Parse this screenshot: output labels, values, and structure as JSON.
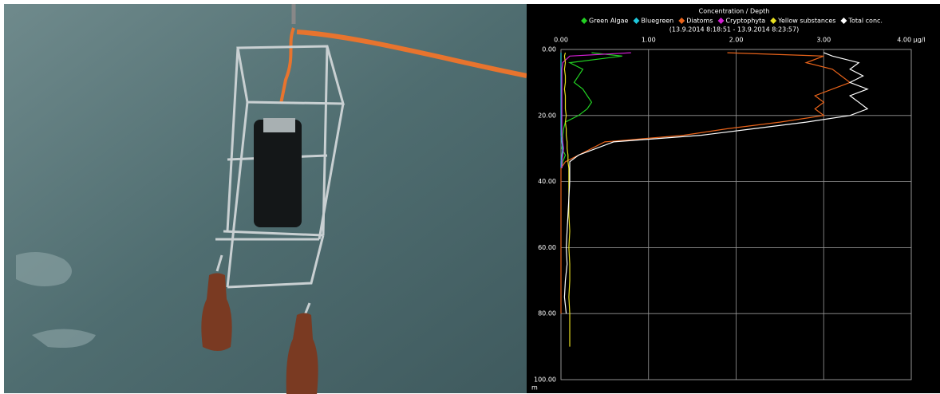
{
  "chart_data": {
    "type": "line",
    "title": "Concentration / Depth",
    "subtitle": "(13.9.2014 8:18:51 - 13.9.2014 8:23:57)",
    "ylabel": "m",
    "y": [
      1,
      2,
      4,
      6,
      8,
      10,
      12,
      14,
      16,
      18,
      20,
      22,
      24,
      26,
      28,
      30,
      32,
      34,
      36,
      40,
      45,
      50,
      55,
      60,
      65,
      70,
      75,
      80,
      85,
      90
    ],
    "xlim": [
      0,
      4
    ],
    "ylim": [
      0,
      100
    ],
    "y_inverted": true,
    "x_axis_position": "top",
    "grid": true,
    "legend": "top",
    "xticks": [
      {
        "value": 0,
        "label": "0.00"
      },
      {
        "value": 1,
        "label": "1.00"
      },
      {
        "value": 2,
        "label": "2.00"
      },
      {
        "value": 3,
        "label": "3.00"
      },
      {
        "value": 4,
        "label": "4.00 µg/l"
      }
    ],
    "yticks": [
      {
        "value": 0,
        "label": "0.00"
      },
      {
        "value": 20,
        "label": "20.00"
      },
      {
        "value": 40,
        "label": "40.00"
      },
      {
        "value": 60,
        "label": "60.00"
      },
      {
        "value": 80,
        "label": "80.00"
      },
      {
        "value": 100,
        "label": "100.00"
      }
    ],
    "series": [
      {
        "name": "Green Algae",
        "color": "#22d022",
        "values": [
          0.35,
          0.7,
          0.1,
          0.25,
          0.2,
          0.15,
          0.25,
          0.3,
          0.35,
          0.3,
          0.2,
          0.05,
          0.03,
          0.02,
          0.02,
          0.01,
          0.05,
          0.02,
          0.01,
          null,
          null,
          null,
          null,
          null,
          null,
          null,
          null,
          null,
          null,
          null
        ]
      },
      {
        "name": "Bluegreen",
        "color": "#1ec8dc",
        "values": [
          0.0,
          0.0,
          0.0,
          0.0,
          0.0,
          0.0,
          0.0,
          0.0,
          0.0,
          0.0,
          0.0,
          0.0,
          0.0,
          0.0,
          0.01,
          0.02,
          0.01,
          0.0,
          0.0,
          null,
          null,
          null,
          null,
          null,
          null,
          null,
          null,
          null,
          null,
          null
        ]
      },
      {
        "name": "Diatoms",
        "color": "#e8631a",
        "values": [
          1.9,
          3.0,
          2.8,
          3.1,
          3.2,
          3.3,
          3.1,
          2.9,
          3.0,
          2.9,
          3.0,
          2.5,
          1.9,
          1.4,
          0.5,
          0.35,
          0.2,
          0.05,
          0.0,
          0.0,
          0.0,
          0.0,
          0.0,
          0.0,
          0.0,
          0.0,
          0.0,
          0.0,
          null,
          null
        ]
      },
      {
        "name": "Cryptophyta",
        "color": "#d21ed2",
        "values": [
          0.8,
          0.1,
          0.02,
          0.01,
          0.01,
          0.01,
          0.01,
          0.01,
          0.01,
          0.01,
          0.01,
          0.01,
          0.01,
          0.01,
          0.02,
          0.03,
          0.02,
          0.01,
          0.01,
          null,
          null,
          null,
          null,
          null,
          null,
          null,
          null,
          null,
          null,
          null
        ]
      },
      {
        "name": "Yellow substances",
        "color": "#e8e020",
        "values": [
          0.05,
          0.04,
          0.05,
          0.04,
          0.05,
          0.05,
          0.04,
          0.05,
          0.05,
          0.05,
          0.06,
          0.05,
          0.06,
          0.06,
          0.07,
          0.07,
          0.08,
          0.08,
          0.09,
          0.09,
          0.09,
          0.09,
          0.1,
          0.09,
          0.1,
          0.1,
          0.09,
          0.1,
          0.1,
          0.1
        ]
      },
      {
        "name": "Total conc.",
        "color": "#ffffff",
        "values": [
          3.0,
          3.1,
          3.4,
          3.3,
          3.45,
          3.3,
          3.5,
          3.3,
          3.4,
          3.5,
          3.3,
          2.8,
          2.2,
          1.6,
          0.6,
          0.4,
          0.2,
          0.1,
          0.1,
          0.1,
          0.09,
          0.08,
          0.07,
          0.06,
          0.07,
          0.05,
          0.04,
          0.06,
          null,
          null
        ]
      }
    ]
  }
}
